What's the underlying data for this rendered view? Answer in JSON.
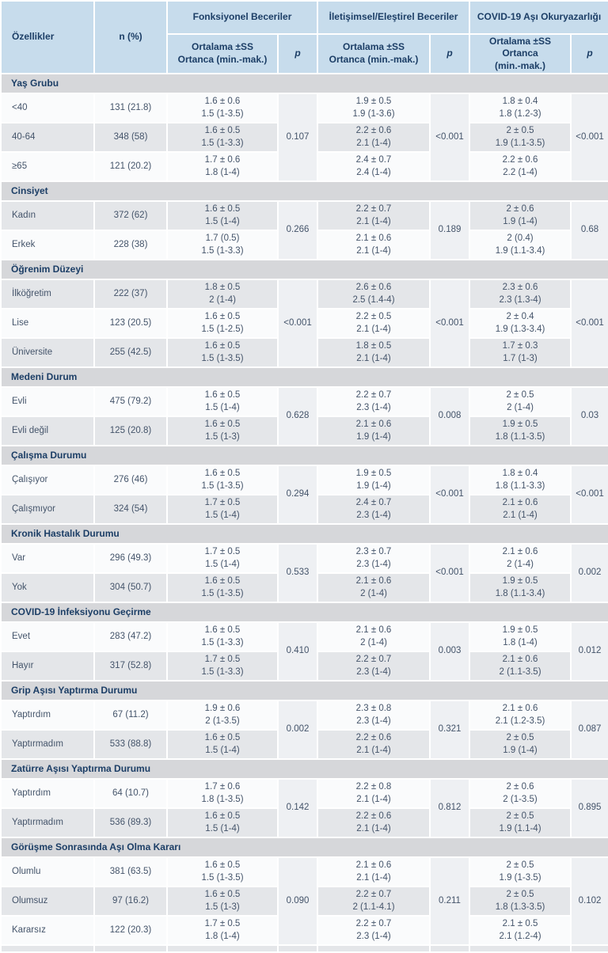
{
  "colors": {
    "header_bg": "#c7dcec",
    "header_text": "#1c3e66",
    "section_bar_bg": "#d6d7da",
    "row_stripe": "#e4e6e9",
    "row_plain": "#fafbfc",
    "p_cell_bg": "#eef0f3",
    "body_text": "#44546a"
  },
  "table": {
    "header": {
      "features_label": "Özellikler",
      "n_label": "n (%)",
      "p_label": "p",
      "groups": [
        {
          "label": "Fonksiyonel Beceriler",
          "sub1": "Ortalama ±SS",
          "sub2": "Ortanca (min.-mak.)"
        },
        {
          "label": "İletişimsel/Eleştirel Beceriler",
          "sub1": "Ortalama ±SS",
          "sub2": "Ortanca (min.-mak.)"
        },
        {
          "label": "COVID-19 Aşı Okuryazarlığı",
          "sub1": "Ortalama ±SS Ortanca",
          "sub2": "(min.-mak.)"
        }
      ]
    },
    "sections": [
      {
        "title": "Yaş Grubu",
        "p": [
          "0.107",
          "<0.001",
          "<0.001"
        ],
        "rows": [
          {
            "label": "<40",
            "n": "131 (21.8)",
            "f_mean": "1.6 ± 0.6",
            "f_med": "1.5 (1-3.5)",
            "c_mean": "1.9 ± 0.5",
            "c_med": "1.9 (1-3.6)",
            "v_mean": "1.8 ± 0.4",
            "v_med": "1.8 (1.2-3)"
          },
          {
            "label": "40-64",
            "n": "348 (58)",
            "f_mean": "1.6 ± 0.5",
            "f_med": "1.5 (1-3.3)",
            "c_mean": "2.2 ± 0.6",
            "c_med": "2.1 (1-4)",
            "v_mean": "2 ± 0.5",
            "v_med": "1.9 (1.1-3.5)"
          },
          {
            "label": "≥65",
            "n": "121 (20.2)",
            "f_mean": "1.7 ± 0.6",
            "f_med": "1.8 (1-4)",
            "c_mean": "2.4 ± 0.7",
            "c_med": "2.4 (1-4)",
            "v_mean": "2.2 ± 0.6",
            "v_med": "2.2 (1-4)"
          }
        ]
      },
      {
        "title": "Cinsiyet",
        "p": [
          "0.266",
          "0.189",
          "0.68"
        ],
        "rows": [
          {
            "label": "Kadın",
            "n": "372 (62)",
            "f_mean": "1.6 ± 0.5",
            "f_med": "1.5 (1-4)",
            "c_mean": "2.2 ± 0.7",
            "c_med": "2.1 (1-4)",
            "v_mean": "2 ± 0.6",
            "v_med": "1.9 (1-4)"
          },
          {
            "label": "Erkek",
            "n": "228 (38)",
            "f_mean": "1.7 (0.5)",
            "f_med": "1.5 (1-3.3)",
            "c_mean": "2.1 ± 0.6",
            "c_med": "2.1 (1-4)",
            "v_mean": "2 (0.4)",
            "v_med": "1.9 (1.1-3.4)"
          }
        ]
      },
      {
        "title": "Öğrenim Düzeyi",
        "p": [
          "<0.001",
          "<0.001",
          "<0.001"
        ],
        "rows": [
          {
            "label": "İlköğretim",
            "n": "222 (37)",
            "f_mean": "1.8 ± 0.5",
            "f_med": "2 (1-4)",
            "c_mean": "2.6 ± 0.6",
            "c_med": "2.5 (1.4-4)",
            "v_mean": "2.3 ± 0.6",
            "v_med": "2.3 (1.3-4)"
          },
          {
            "label": "Lise",
            "n": "123 (20.5)",
            "f_mean": "1.6 ± 0.5",
            "f_med": "1.5 (1-2.5)",
            "c_mean": "2.2 ± 0.5",
            "c_med": "2.1 (1-4)",
            "v_mean": "2 ± 0.4",
            "v_med": "1.9 (1.3-3.4)"
          },
          {
            "label": "Üniversite",
            "n": "255 (42.5)",
            "f_mean": "1.6 ± 0.5",
            "f_med": "1.5 (1-3.5)",
            "c_mean": "1.8 ± 0.5",
            "c_med": "2.1 (1-4)",
            "v_mean": "1.7 ± 0.3",
            "v_med": "1.7 (1-3)"
          }
        ]
      },
      {
        "title": "Medeni Durum",
        "p": [
          "0.628",
          "0.008",
          "0.03"
        ],
        "rows": [
          {
            "label": "Evli",
            "n": "475 (79.2)",
            "f_mean": "1.6 ± 0.5",
            "f_med": "1.5 (1-4)",
            "c_mean": "2.2 ± 0.7",
            "c_med": "2.3 (1-4)",
            "v_mean": "2 ± 0.5",
            "v_med": "2 (1-4)"
          },
          {
            "label": "Evli değil",
            "n": "125 (20.8)",
            "f_mean": "1.6 ± 0.5",
            "f_med": "1.5 (1-3)",
            "c_mean": "2.1 ± 0.6",
            "c_med": "1.9 (1-4)",
            "v_mean": "1.9 ± 0.5",
            "v_med": "1.8 (1.1-3.5)"
          }
        ]
      },
      {
        "title": "Çalışma Durumu",
        "p": [
          "0.294",
          "<0.001",
          "<0.001"
        ],
        "rows": [
          {
            "label": "Çalışıyor",
            "n": "276 (46)",
            "f_mean": "1.6 ± 0.5",
            "f_med": "1.5 (1-3.5)",
            "c_mean": "1.9 ± 0.5",
            "c_med": "1.9 (1-4)",
            "v_mean": "1.8 ± 0.4",
            "v_med": "1.8 (1.1-3.3)"
          },
          {
            "label": "Çalışmıyor",
            "n": "324 (54)",
            "f_mean": "1.7 ± 0.5",
            "f_med": "1.5 (1-4)",
            "c_mean": "2.4 ± 0.7",
            "c_med": "2.3 (1-4)",
            "v_mean": "2.1 ± 0.6",
            "v_med": "2.1 (1-4)"
          }
        ]
      },
      {
        "title": "Kronik Hastalık Durumu",
        "p": [
          "0.533",
          "<0.001",
          "0.002"
        ],
        "rows": [
          {
            "label": "Var",
            "n": "296 (49.3)",
            "f_mean": "1.7 ± 0.5",
            "f_med": "1.5 (1-4)",
            "c_mean": "2.3 ± 0.7",
            "c_med": "2.3 (1-4)",
            "v_mean": "2.1 ± 0.6",
            "v_med": "2 (1-4)"
          },
          {
            "label": "Yok",
            "n": "304 (50.7)",
            "f_mean": "1.6 ± 0.5",
            "f_med": "1.5 (1-3.5)",
            "c_mean": "2.1 ± 0.6",
            "c_med": "2 (1-4)",
            "v_mean": "1.9 ± 0.5",
            "v_med": "1.8 (1.1-3.4)"
          }
        ]
      },
      {
        "title": "COVID-19 İnfeksiyonu Geçirme",
        "p": [
          "0.410",
          "0.003",
          "0.012"
        ],
        "rows": [
          {
            "label": "Evet",
            "n": "283 (47.2)",
            "f_mean": "1.6 ± 0.5",
            "f_med": "1.5 (1-3.3)",
            "c_mean": "2.1 ± 0.6",
            "c_med": "2 (1-4)",
            "v_mean": "1.9 ± 0.5",
            "v_med": "1.8 (1-4)"
          },
          {
            "label": "Hayır",
            "n": "317 (52.8)",
            "f_mean": "1.7 ± 0.5",
            "f_med": "1.5 (1-3.3)",
            "c_mean": "2.2 ± 0.7",
            "c_med": "2.3 (1-4)",
            "v_mean": "2.1 ± 0.6",
            "v_med": "2 (1.1-3.5)"
          }
        ]
      },
      {
        "title": "Grip Aşısı Yaptırma Durumu",
        "p": [
          "0.002",
          "0.321",
          "0.087"
        ],
        "rows": [
          {
            "label": "Yaptırdım",
            "n": "67 (11.2)",
            "f_mean": "1.9 ± 0.6",
            "f_med": "2 (1-3.5)",
            "c_mean": "2.3 ± 0.8",
            "c_med": "2.3 (1-4)",
            "v_mean": "2.1 ± 0.6",
            "v_med": "2.1 (1.2-3.5)"
          },
          {
            "label": "Yaptırmadım",
            "n": "533 (88.8)",
            "f_mean": "1.6 ± 0.5",
            "f_med": "1.5 (1-4)",
            "c_mean": "2.2 ± 0.6",
            "c_med": "2.1 (1-4)",
            "v_mean": "2 ± 0.5",
            "v_med": "1.9 (1-4)"
          }
        ]
      },
      {
        "title": "Zatürre Aşısı Yaptırma Durumu",
        "p": [
          "0.142",
          "0.812",
          "0.895"
        ],
        "rows": [
          {
            "label": "Yaptırdım",
            "n": "64 (10.7)",
            "f_mean": "1.7 ± 0.6",
            "f_med": "1.8 (1-3.5)",
            "c_mean": "2.2 ± 0.8",
            "c_med": "2.1 (1-4)",
            "v_mean": "2 ± 0.6",
            "v_med": "2 (1-3.5)"
          },
          {
            "label": "Yaptırmadım",
            "n": "536 (89.3)",
            "f_mean": "1.6 ± 0.5",
            "f_med": "1.5 (1-4)",
            "c_mean": "2.2 ± 0.6",
            "c_med": "2.1 (1-4)",
            "v_mean": "2 ± 0.5",
            "v_med": "1.9 (1.1-4)"
          }
        ]
      },
      {
        "title": "Görüşme Sonrasında Aşı Olma Kararı",
        "p": [
          "0.090",
          "0.211",
          "0.102"
        ],
        "rows": [
          {
            "label": "Olumlu",
            "n": "381 (63.5)",
            "f_mean": "1.6 ± 0.5",
            "f_med": "1.5 (1-3.5)",
            "c_mean": "2.1 ± 0.6",
            "c_med": "2.1 (1-4)",
            "v_mean": "2 ± 0.5",
            "v_med": "1.9 (1-3.5)"
          },
          {
            "label": "Olumsuz",
            "n": "97 (16.2)",
            "f_mean": "1.6 ± 0.5",
            "f_med": "1.5 (1-3)",
            "c_mean": "2.2 ± 0.7",
            "c_med": "2 (1.1-4.1)",
            "v_mean": "2 ± 0.5",
            "v_med": "1.8 (1.3-3.5)"
          },
          {
            "label": "Kararsız",
            "n": "122 (20.3)",
            "f_mean": "1.7 ± 0.5",
            "f_med": "1.8 (1-4)",
            "c_mean": "2.2 ± 0.7",
            "c_med": "2.3 (1-4)",
            "v_mean": "2.1 ± 0.5",
            "v_med": "2.1 (1.2-4)"
          }
        ]
      }
    ]
  }
}
